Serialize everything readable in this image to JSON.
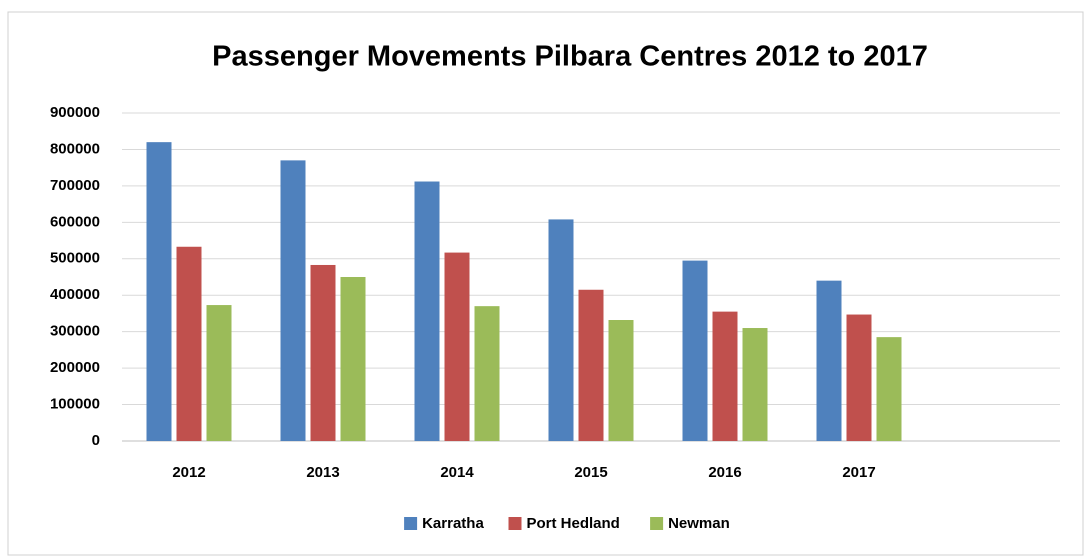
{
  "chart_data": {
    "type": "bar",
    "title": "Passenger Movements Pilbara Centres 2012 to 2017",
    "categories": [
      "2012",
      "2013",
      "2014",
      "2015",
      "2016",
      "2017",
      null
    ],
    "series": [
      {
        "name": "Karratha",
        "color": "#4f81bd",
        "values": [
          820000,
          770000,
          712000,
          608000,
          495000,
          440000,
          null
        ]
      },
      {
        "name": "Port Hedland",
        "color": "#c0504d",
        "values": [
          533000,
          483000,
          517000,
          415000,
          355000,
          347000,
          null
        ]
      },
      {
        "name": "Newman",
        "color": "#9bbb59",
        "values": [
          373000,
          450000,
          370000,
          332000,
          310000,
          285000,
          null
        ]
      }
    ],
    "ylim": [
      0,
      900000
    ],
    "yticks": [
      0,
      100000,
      200000,
      300000,
      400000,
      500000,
      600000,
      700000,
      800000,
      900000
    ],
    "grid": true,
    "legend": "bottom"
  }
}
